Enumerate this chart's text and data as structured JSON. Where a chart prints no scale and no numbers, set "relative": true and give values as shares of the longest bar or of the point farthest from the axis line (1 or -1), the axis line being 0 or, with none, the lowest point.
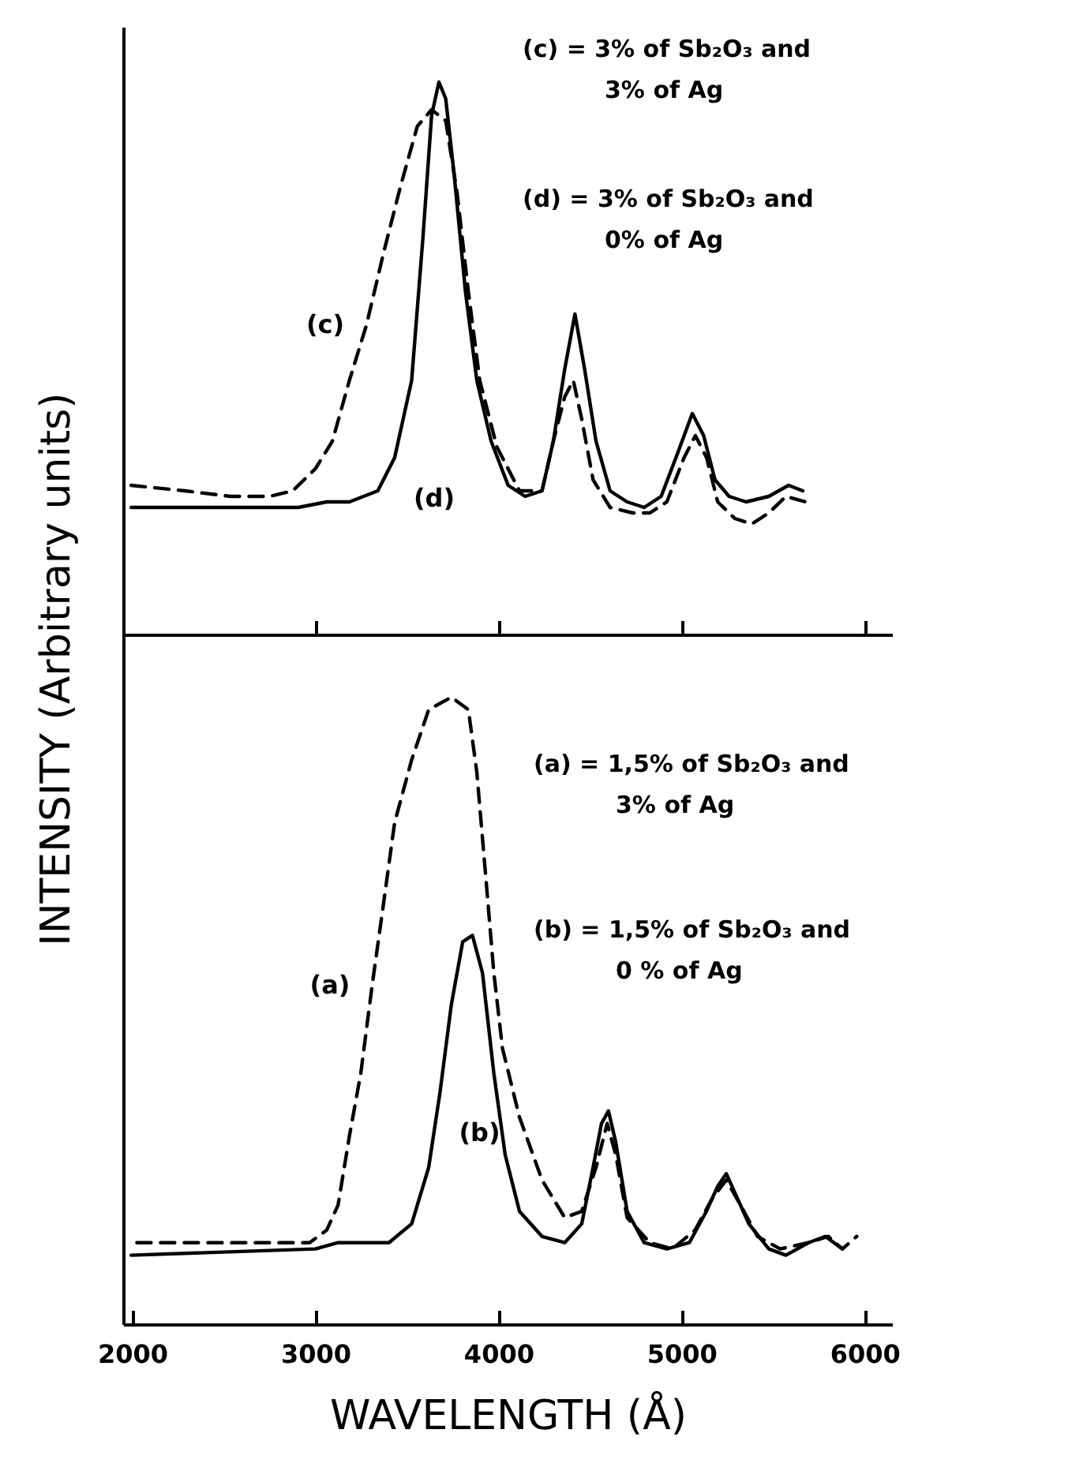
{
  "chart_data": [
    {
      "type": "line",
      "relative": true,
      "ylabel": "INTENSITY (Arbitrary units)",
      "xlim": [
        1950,
        6150
      ],
      "xticks": [
        3000,
        4000,
        5000,
        6000
      ],
      "tick_labels": false,
      "annotations": [
        "(c) = 3% of Sb₂O₃ and 3% of Ag",
        "(d) = 3% of Sb₂O₃ and 0% of Ag"
      ],
      "series": [
        {
          "name": "(c)",
          "color": "#000000",
          "line_style": "dashed",
          "x": [
            1994,
            2288,
            2536,
            2752,
            2876,
            3000,
            3093,
            3186,
            3279,
            3372,
            3464,
            3557,
            3635,
            3712,
            3774,
            3836,
            3898,
            3991,
            4115,
            4238,
            4300,
            4362,
            4409,
            4455,
            4517,
            4610,
            4734,
            4827,
            4920,
            5014,
            5076,
            5137,
            5198,
            5291,
            5384,
            5477,
            5570,
            5678
          ],
          "values": [
            0.27,
            0.26,
            0.25,
            0.25,
            0.26,
            0.3,
            0.35,
            0.46,
            0.56,
            0.69,
            0.81,
            0.92,
            0.95,
            0.93,
            0.8,
            0.62,
            0.46,
            0.34,
            0.26,
            0.26,
            0.35,
            0.43,
            0.46,
            0.39,
            0.28,
            0.23,
            0.22,
            0.22,
            0.24,
            0.32,
            0.36,
            0.32,
            0.24,
            0.21,
            0.2,
            0.22,
            0.25,
            0.24
          ]
        },
        {
          "name": "(d)",
          "color": "#000000",
          "line_style": "solid",
          "x": [
            1994,
            2907,
            3062,
            3186,
            3341,
            3433,
            3526,
            3588,
            3635,
            3675,
            3712,
            3759,
            3820,
            3882,
            3960,
            4053,
            4146,
            4238,
            4300,
            4362,
            4418,
            4471,
            4533,
            4610,
            4703,
            4796,
            4889,
            4981,
            5059,
            5121,
            5183,
            5260,
            5353,
            5477,
            5585,
            5663
          ],
          "values": [
            0.23,
            0.23,
            0.24,
            0.24,
            0.26,
            0.32,
            0.46,
            0.72,
            0.94,
            1.0,
            0.97,
            0.83,
            0.62,
            0.46,
            0.35,
            0.27,
            0.25,
            0.26,
            0.35,
            0.48,
            0.58,
            0.48,
            0.35,
            0.26,
            0.24,
            0.23,
            0.25,
            0.33,
            0.4,
            0.36,
            0.28,
            0.25,
            0.24,
            0.25,
            0.27,
            0.26
          ]
        }
      ]
    },
    {
      "type": "line",
      "relative": true,
      "xlabel": "WAVELENGTH (Å)",
      "xlim": [
        1950,
        6150
      ],
      "xticks": [
        2000,
        3000,
        4000,
        5000,
        6000
      ],
      "tick_labels": "x",
      "annotations": [
        "(a) = 1,5% of Sb₂O₃ and 3% of Ag",
        "(b) = 1,5% of Sb₂O₃ and 0 % of Ag"
      ],
      "series": [
        {
          "name": "(a)",
          "color": "#000000",
          "line_style": "dashed",
          "x": [
            2025,
            2443,
            2752,
            2969,
            3062,
            3124,
            3186,
            3248,
            3310,
            3372,
            3433,
            3526,
            3619,
            3743,
            3836,
            3882,
            3929,
            3975,
            4022,
            4115,
            4238,
            4362,
            4455,
            4533,
            4594,
            4641,
            4703,
            4827,
            4950,
            5074,
            5167,
            5245,
            5322,
            5415,
            5539,
            5694,
            5802,
            5879,
            5957
          ],
          "values": [
            0.13,
            0.13,
            0.13,
            0.13,
            0.15,
            0.19,
            0.3,
            0.4,
            0.54,
            0.67,
            0.8,
            0.9,
            0.98,
            1.0,
            0.98,
            0.88,
            0.72,
            0.56,
            0.44,
            0.33,
            0.23,
            0.17,
            0.18,
            0.25,
            0.32,
            0.27,
            0.17,
            0.13,
            0.12,
            0.15,
            0.2,
            0.23,
            0.19,
            0.14,
            0.12,
            0.13,
            0.14,
            0.12,
            0.14
          ]
        },
        {
          "name": "(b)",
          "color": "#000000",
          "line_style": "solid",
          "x": [
            1994,
            3000,
            3124,
            3402,
            3526,
            3619,
            3681,
            3743,
            3805,
            3858,
            3913,
            3975,
            4037,
            4115,
            4238,
            4362,
            4455,
            4517,
            4563,
            4601,
            4641,
            4703,
            4796,
            4920,
            5043,
            5136,
            5198,
            5245,
            5291,
            5368,
            5477,
            5570,
            5694,
            5786,
            5879
          ],
          "values": [
            0.11,
            0.12,
            0.13,
            0.13,
            0.16,
            0.25,
            0.37,
            0.51,
            0.61,
            0.62,
            0.56,
            0.4,
            0.27,
            0.18,
            0.14,
            0.13,
            0.16,
            0.25,
            0.32,
            0.34,
            0.29,
            0.18,
            0.13,
            0.12,
            0.13,
            0.18,
            0.22,
            0.24,
            0.21,
            0.16,
            0.12,
            0.11,
            0.13,
            0.14,
            0.12
          ]
        }
      ]
    }
  ]
}
